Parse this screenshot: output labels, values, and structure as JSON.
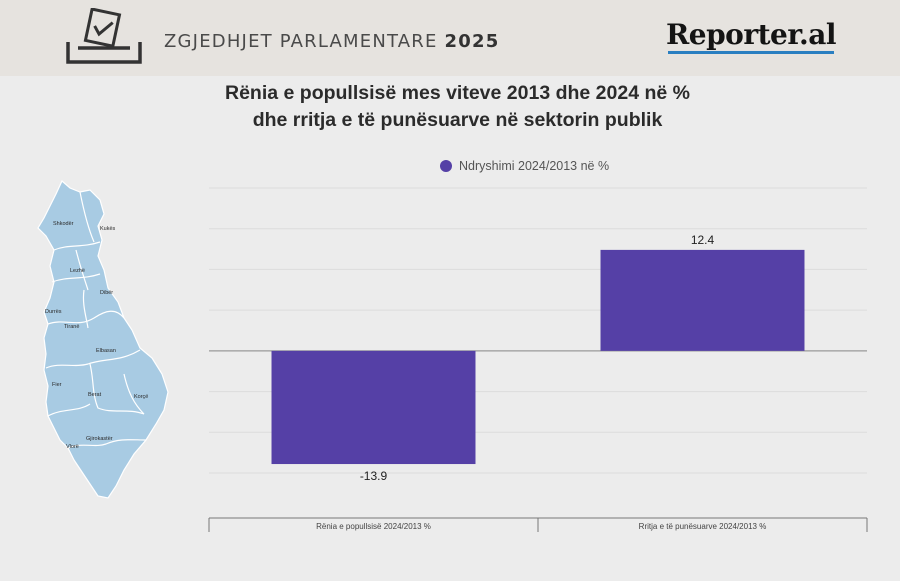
{
  "header": {
    "title_main": "ZGJEDHJET PARLAMENTARE",
    "title_year": "2025",
    "logo": "Reporter.al"
  },
  "map": {
    "regions": [
      "Shkodër",
      "Kukës",
      "Lezhë",
      "Dibër",
      "Durrës",
      "Tiranë",
      "Elbasan",
      "Fier",
      "Berat",
      "Korçë",
      "Gjirokastër",
      "Vlorë"
    ]
  },
  "chart_data": {
    "type": "bar",
    "title_line1": "Rënia e popullsisë mes viteve 2013 dhe 2024 në %",
    "title_line2": "dhe rritja e të punësuarve në sektorin publik",
    "categories": [
      "Rënia e popullsisë 2024/2013 %",
      "Rritja e të punësuarve 2024/2013 %"
    ],
    "series": [
      {
        "name": "Ndryshimi 2024/2013 në %",
        "values": [
          -13.9,
          12.4
        ],
        "color": "#5540a6"
      }
    ],
    "data_labels": [
      "-13.9",
      "12.4"
    ],
    "ylim": [
      -15,
      20
    ],
    "grid": true,
    "legend_position": "top"
  }
}
